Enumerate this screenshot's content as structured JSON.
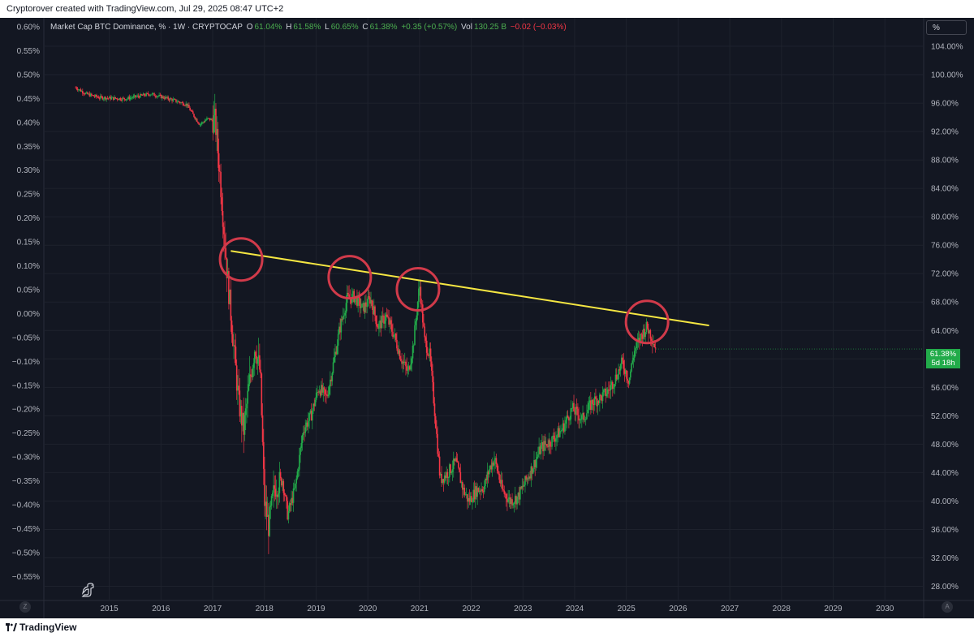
{
  "header": {
    "attribution": "Cryptorover created with TradingView.com, Jul 29, 2025 08:47 UTC+2"
  },
  "legend": {
    "symbol": "Market Cap BTC Dominance, % · 1W · CRYPTOCAP",
    "o_label": "O",
    "o_value": "61.04%",
    "h_label": "H",
    "h_value": "61.58%",
    "l_label": "L",
    "l_value": "60.65%",
    "c_label": "C",
    "c_value": "61.38%",
    "change": "+0.35 (+0.57%)",
    "vol_label": "Vol",
    "vol_value": "130.25 B",
    "vol_change": "−0.02 (−0.03%)"
  },
  "scale_button": "%",
  "price_badge": {
    "value": "61.38%",
    "countdown": "5d 18h"
  },
  "corner_buttons": {
    "left": "Z",
    "right": "A"
  },
  "footer": {
    "brand": "TradingView"
  },
  "colors": {
    "background": "#131722",
    "grid": "#1e222d",
    "up": "#22ab4a",
    "down": "#f23645",
    "trendline": "#f5e642",
    "circle": "#d13a4a",
    "axis_text": "#b2b5be"
  },
  "chart_data": {
    "type": "candlestick",
    "title": "Market Cap BTC Dominance, % · 1W · CRYPTOCAP",
    "interval": "1W",
    "left_axis": {
      "ticks": [
        "0.60%",
        "0.55%",
        "0.50%",
        "0.45%",
        "0.40%",
        "0.35%",
        "0.30%",
        "0.25%",
        "0.20%",
        "0.15%",
        "0.10%",
        "0.05%",
        "0.00%",
        "−0.05%",
        "−0.10%",
        "−0.15%",
        "−0.20%",
        "−0.25%",
        "−0.30%",
        "−0.35%",
        "−0.40%",
        "−0.45%",
        "−0.50%",
        "−0.55%"
      ]
    },
    "right_axis": {
      "ticks": [
        "104.00%",
        "100.00%",
        "96.00%",
        "92.00%",
        "88.00%",
        "84.00%",
        "80.00%",
        "76.00%",
        "72.00%",
        "68.00%",
        "64.00%",
        "60.00%",
        "56.00%",
        "52.00%",
        "48.00%",
        "44.00%",
        "40.00%",
        "36.00%",
        "32.00%",
        "28.00%"
      ],
      "ylim": [
        26,
        108
      ]
    },
    "x_axis": {
      "ticks": [
        "2015",
        "2016",
        "2017",
        "2018",
        "2019",
        "2020",
        "2021",
        "2022",
        "2023",
        "2024",
        "2025",
        "2026",
        "2027",
        "2028",
        "2029",
        "2030"
      ],
      "xlim": [
        2013.75,
        2030.75
      ]
    },
    "series": [
      {
        "anchors": [
          [
            2014.35,
            98.2
          ],
          [
            2014.55,
            97.3
          ],
          [
            2014.8,
            96.8
          ],
          [
            2015.3,
            96.6
          ],
          [
            2015.8,
            97.3
          ],
          [
            2016.2,
            96.5
          ],
          [
            2016.5,
            95.8
          ],
          [
            2016.6,
            94.6
          ],
          [
            2016.75,
            93.0
          ],
          [
            2016.9,
            93.8
          ],
          [
            2017.05,
            93.5
          ],
          [
            2017.15,
            85.0
          ],
          [
            2017.28,
            72.0
          ],
          [
            2017.38,
            64.0
          ],
          [
            2017.5,
            54.0
          ],
          [
            2017.6,
            50.0
          ],
          [
            2017.7,
            56.0
          ],
          [
            2017.82,
            62.0
          ],
          [
            2017.92,
            58.0
          ],
          [
            2018.0,
            40.0
          ],
          [
            2018.08,
            36.5
          ],
          [
            2018.2,
            42.0
          ],
          [
            2018.35,
            43.0
          ],
          [
            2018.45,
            38.0
          ],
          [
            2018.6,
            42.0
          ],
          [
            2018.75,
            50.0
          ],
          [
            2018.9,
            52.0
          ],
          [
            2019.05,
            56.0
          ],
          [
            2019.2,
            54.5
          ],
          [
            2019.3,
            58.0
          ],
          [
            2019.45,
            64.0
          ],
          [
            2019.6,
            68.5
          ],
          [
            2019.75,
            68.8
          ],
          [
            2019.9,
            67.0
          ],
          [
            2020.05,
            68.5
          ],
          [
            2020.2,
            64.5
          ],
          [
            2020.35,
            66.0
          ],
          [
            2020.5,
            63.5
          ],
          [
            2020.65,
            60.0
          ],
          [
            2020.78,
            58.0
          ],
          [
            2020.88,
            62.0
          ],
          [
            2021.0,
            70.5
          ],
          [
            2021.1,
            62.5
          ],
          [
            2021.2,
            60.5
          ],
          [
            2021.3,
            52.0
          ],
          [
            2021.4,
            43.0
          ],
          [
            2021.55,
            44.0
          ],
          [
            2021.7,
            45.5
          ],
          [
            2021.85,
            41.5
          ],
          [
            2021.95,
            40.0
          ],
          [
            2022.1,
            41.5
          ],
          [
            2022.25,
            42.0
          ],
          [
            2022.35,
            44.5
          ],
          [
            2022.45,
            46.0
          ],
          [
            2022.6,
            41.5
          ],
          [
            2022.75,
            40.0
          ],
          [
            2022.9,
            40.5
          ],
          [
            2023.0,
            42.0
          ],
          [
            2023.2,
            45.0
          ],
          [
            2023.35,
            47.5
          ],
          [
            2023.55,
            48.5
          ],
          [
            2023.75,
            50.0
          ],
          [
            2023.95,
            53.0
          ],
          [
            2024.15,
            51.5
          ],
          [
            2024.35,
            54.0
          ],
          [
            2024.5,
            54.5
          ],
          [
            2024.65,
            55.5
          ],
          [
            2024.8,
            57.5
          ],
          [
            2024.92,
            59.5
          ],
          [
            2025.05,
            57.0
          ],
          [
            2025.15,
            61.0
          ],
          [
            2025.3,
            63.5
          ],
          [
            2025.4,
            64.5
          ],
          [
            2025.5,
            63.0
          ],
          [
            2025.57,
            61.4
          ]
        ]
      }
    ],
    "trendline": {
      "from": [
        2017.35,
        75.2
      ],
      "to": [
        2026.6,
        64.7
      ]
    },
    "circles": [
      {
        "x": 2017.55,
        "y": 74.0
      },
      {
        "x": 2019.65,
        "y": 71.5
      },
      {
        "x": 2020.97,
        "y": 69.8
      },
      {
        "x": 2025.4,
        "y": 65.2
      }
    ]
  }
}
